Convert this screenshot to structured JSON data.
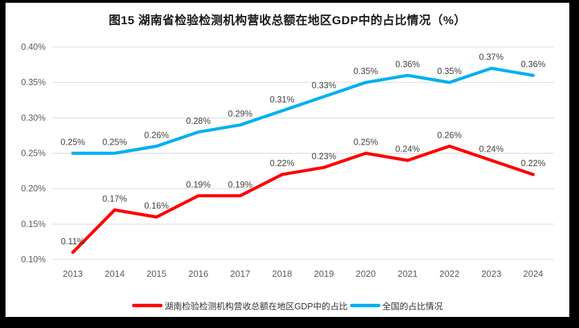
{
  "frame": {
    "background_color": "#ffffff",
    "border_color": "#000000"
  },
  "chart_data": {
    "type": "line",
    "title": "图15 湖南省检验检测机构营收总额在地区GDP中的占比情况（%）",
    "categories": [
      "2013",
      "2014",
      "2015",
      "2016",
      "2017",
      "2018",
      "2019",
      "2020",
      "2021",
      "2022",
      "2023",
      "2024"
    ],
    "series": [
      {
        "id": "hunan",
        "name": "湖南检验检测机构营收总额在地区GDP中的占比",
        "color": "#ff0000",
        "values": [
          0.11,
          0.17,
          0.16,
          0.19,
          0.19,
          0.22,
          0.23,
          0.25,
          0.24,
          0.26,
          0.24,
          0.22
        ],
        "labels": [
          "0.11%",
          "0.17%",
          "0.16%",
          "0.19%",
          "0.19%",
          "0.22%",
          "0.23%",
          "0.25%",
          "0.24%",
          "0.26%",
          "0.24%",
          "0.22%"
        ]
      },
      {
        "id": "national",
        "name": "全国的占比情况",
        "color": "#00b0f0",
        "values": [
          0.25,
          0.25,
          0.26,
          0.28,
          0.29,
          0.31,
          0.33,
          0.35,
          0.36,
          0.35,
          0.37,
          0.36
        ],
        "labels": [
          "0.25%",
          "0.25%",
          "0.26%",
          "0.28%",
          "0.29%",
          "0.31%",
          "0.33%",
          "0.35%",
          "0.36%",
          "0.35%",
          "0.37%",
          "0.36%"
        ]
      }
    ],
    "y_axis": {
      "min": 0.1,
      "max": 0.4,
      "step": 0.05,
      "tick_labels": [
        "0.10%",
        "0.15%",
        "0.20%",
        "0.25%",
        "0.30%",
        "0.35%",
        "0.40%"
      ]
    },
    "grid": true,
    "gridline_color": "#d9d9d9",
    "axis_label_color": "#595959",
    "data_label_color": "#404040",
    "legend_position": "bottom"
  }
}
